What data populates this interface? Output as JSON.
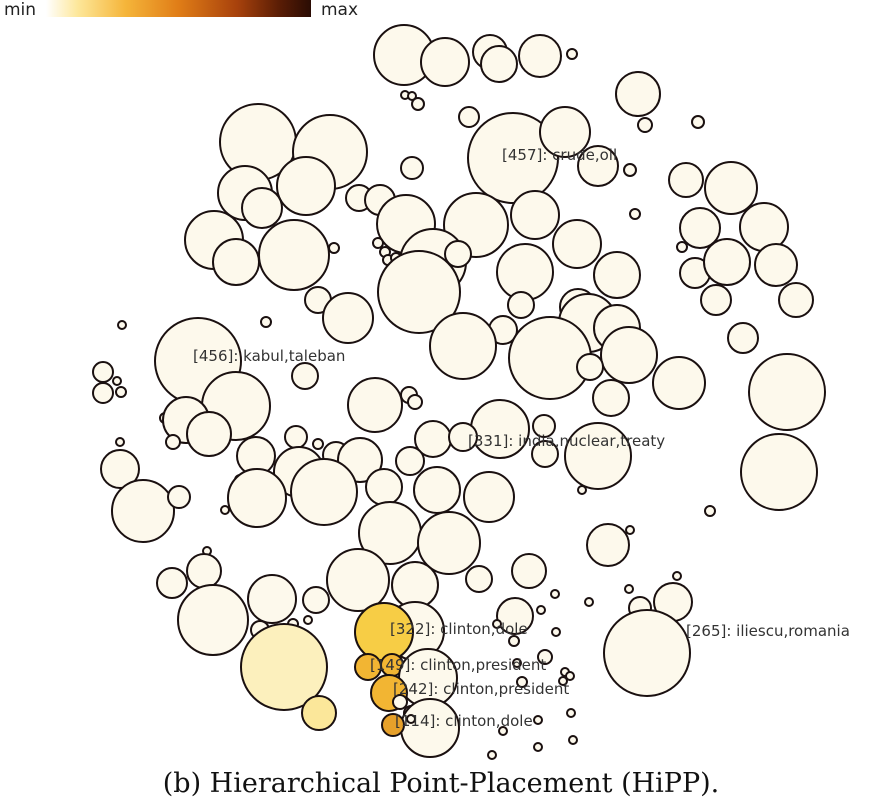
{
  "legend": {
    "min_label": "min",
    "max_label": "max"
  },
  "caption": "(b)  Hierarchical Point-Placement (HiPP).",
  "colors": {
    "default": "#fdf9ec",
    "pale_yellow": "#fcf0bd",
    "light_yellow": "#fbe79a",
    "gold": "#f7cd45",
    "orange": "#f2b533",
    "dark_orange": "#e6a02a",
    "outline": "#1a1010"
  },
  "cluster_labels": [
    {
      "id": "label-457",
      "text": "[457]: crude,oil"
    },
    {
      "id": "label-456",
      "text": "[456]: kabul,taleban"
    },
    {
      "id": "label-331",
      "text": "[331]: india,nuclear,treaty"
    },
    {
      "id": "label-322",
      "text": "[322]: clinton,dole"
    },
    {
      "id": "label-149",
      "text": "[149]: clinton,president"
    },
    {
      "id": "label-242",
      "text": "[242]: clinton,president"
    },
    {
      "id": "label-114",
      "text": "[114]: clinton,dole"
    },
    {
      "id": "label-265",
      "text": "[265]: iliescu,romania"
    }
  ]
}
